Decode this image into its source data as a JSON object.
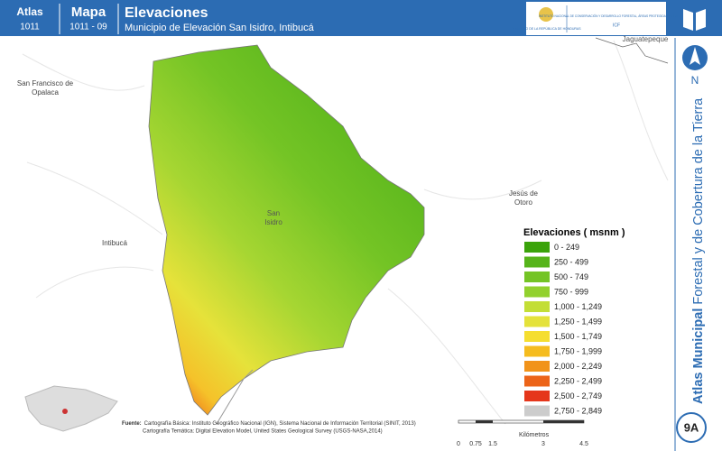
{
  "header": {
    "atlas_label": "Atlas",
    "atlas_code": "1011",
    "map_label": "Mapa",
    "map_code": "1011 - 09",
    "title": "Elevaciones",
    "subtitle": "Municipio de Elevación San Isidro, Intibucá",
    "logo_left": "GOBIERNO DE LA REPÚBLICA DE HONDURAS",
    "logo_right": "INSTITUTO NACIONAL DE CONSERVACIÓN Y DESARROLLO FORESTAL, ÁREAS PROTEGIDAS Y VIDA SILVESTRE",
    "logo_acronym": "ICF"
  },
  "map_labels": {
    "top_right": "Jaguatepeque",
    "west": "San Francisco de Opalaca",
    "east": "Jesús de Otoro",
    "southwest": "Intibucá",
    "center": "San Isidro"
  },
  "legend": {
    "title": "Elevaciones ( msnm )",
    "items": [
      {
        "label": "0 - 249",
        "color": "#3aa30a"
      },
      {
        "label": "250 - 499",
        "color": "#56b41a"
      },
      {
        "label": "500 - 749",
        "color": "#74c425"
      },
      {
        "label": "750 - 999",
        "color": "#92d12e"
      },
      {
        "label": "1,000 - 1,249",
        "color": "#c3de36"
      },
      {
        "label": "1,250 - 1,499",
        "color": "#e4e23a"
      },
      {
        "label": "1,500 - 1,749",
        "color": "#f5de30"
      },
      {
        "label": "1,750 - 1,999",
        "color": "#f5bc1e"
      },
      {
        "label": "2,000 - 2,249",
        "color": "#f1931a"
      },
      {
        "label": "2,250 - 2,499",
        "color": "#ec6419"
      },
      {
        "label": "2,500 - 2,749",
        "color": "#e5361b"
      },
      {
        "label": "2,750 - 2,849",
        "color": "#cccccc"
      }
    ]
  },
  "sidebar": {
    "north": "N",
    "atlas_bold": "Atlas Municipal",
    "atlas_rest": "Forestal y de Cobertura de la Tierra",
    "page": "9A"
  },
  "footer": {
    "source_label": "Fuente:",
    "source_1": "Cartografía Básica: Instituto Geográfico Nacional (IGN), Sistema Nacional de Información Territorial (SINIT, 2013)",
    "source_2": "Cartografía Temática: Digital Elevation Model, United States Geological Survey (USGS-NASA,2014)",
    "scale_ticks": [
      "0",
      "0.75",
      "1.5",
      "3",
      "4.5"
    ],
    "scale_unit": "Kilómetros"
  }
}
